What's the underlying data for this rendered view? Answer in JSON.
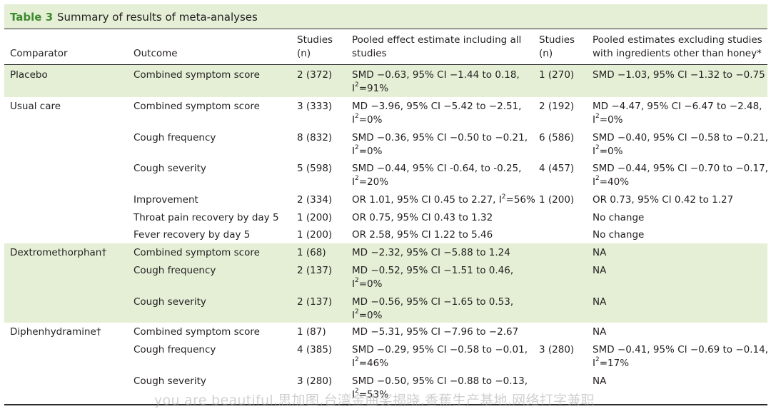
{
  "table": {
    "number": "Table 3",
    "title": "Summary of results of meta-analyses"
  },
  "headers": {
    "comparator": "Comparator",
    "outcome": "Outcome",
    "studies1_a": "Studies",
    "studies1_b": "(n)",
    "pooled_all_a": "Pooled effect estimate including all",
    "pooled_all_b": "studies",
    "studies2_a": "Studies",
    "studies2_b": "(n)",
    "pooled_excl_a": "Pooled estimates excluding studies",
    "pooled_excl_b": "with ingredients other than honey*"
  },
  "rows": [
    {
      "comparator": "Placebo",
      "outcome": "Combined symptom score",
      "studies1": "2 (372)",
      "est1_a": "SMD −0.63, 95% CI −1.44 to 0.18,",
      "est1_b": "91%",
      "studies2": "1 (270)",
      "est2_a": "SMD −1.03, 95% CI −1.32 to −0.75",
      "est2_b": ""
    },
    {
      "comparator": "Usual care",
      "outcome": "Combined symptom score",
      "studies1": "3 (333)",
      "est1_a": "MD −3.96, 95% CI −5.42 to −2.51,",
      "est1_b": "0%",
      "studies2": "2 (192)",
      "est2_a": "MD −4.47, 95% CI −6.47 to −2.48,",
      "est2_b": "0%"
    },
    {
      "comparator": "",
      "outcome": "Cough frequency",
      "studies1": "8 (832)",
      "est1_a": "SMD −0.36, 95% CI −0.50 to −0.21,",
      "est1_b": "0%",
      "studies2": "6 (586)",
      "est2_a": "SMD −0.40, 95% CI −0.58 to −0.21,",
      "est2_b": "0%"
    },
    {
      "comparator": "",
      "outcome": "Cough severity",
      "studies1": "5 (598)",
      "est1_a": "SMD −0.44, 95% CI -0.64, to -0.25,",
      "est1_b": "20%",
      "studies2": "4 (457)",
      "est2_a": "SMD −0.44, 95% CI −0.70 to −0.17,",
      "est2_b": "40%"
    },
    {
      "comparator": "",
      "outcome": "Improvement",
      "studies1": "2 (334)",
      "est1_a": "OR 1.01, 95% CI 0.45 to 2.27, ",
      "est1_b": "",
      "est1_inline": "56%",
      "studies2": "1 (200)",
      "est2_a": "OR 0.73, 95% CI 0.42 to 1.27",
      "est2_b": ""
    },
    {
      "comparator": "",
      "outcome": "Throat pain recovery by day 5",
      "studies1": "1 (200)",
      "est1_a": "OR 0.75, 95% CI 0.43 to 1.32",
      "est1_b": "",
      "studies2": "",
      "est2_a": "No change",
      "est2_b": ""
    },
    {
      "comparator": "",
      "outcome": "Fever recovery by day 5",
      "studies1": "1 (200)",
      "est1_a": "OR 2.58, 95% CI 1.22 to 5.46",
      "est1_b": "",
      "studies2": "",
      "est2_a": "No change",
      "est2_b": ""
    },
    {
      "comparator": "Dextromethorphan†",
      "outcome": "Combined symptom score",
      "studies1": "1 (68)",
      "est1_a": "MD −2.32, 95% CI −5.88 to 1.24",
      "est1_b": "",
      "studies2": "",
      "est2_a": "NA",
      "est2_b": ""
    },
    {
      "comparator": "",
      "outcome": "Cough frequency",
      "studies1": "2 (137)",
      "est1_a": "MD −0.52, 95% CI −1.51 to 0.46,",
      "est1_b": "0%",
      "studies2": "",
      "est2_a": "NA",
      "est2_b": ""
    },
    {
      "comparator": "",
      "outcome": "Cough severity",
      "studies1": "2 (137)",
      "est1_a": "MD −0.56, 95% CI −1.65 to 0.53,",
      "est1_b": "0%",
      "studies2": "",
      "est2_a": "NA",
      "est2_b": ""
    },
    {
      "comparator": "Diphenhydramine†",
      "outcome": "Combined symptom score",
      "studies1": "1 (87)",
      "est1_a": "MD −5.31, 95% CI −7.96 to −2.67",
      "est1_b": "",
      "studies2": "",
      "est2_a": "NA",
      "est2_b": ""
    },
    {
      "comparator": "",
      "outcome": "Cough frequency",
      "studies1": "4 (385)",
      "est1_a": "SMD −0.29, 95% CI −0.58 to −0.01,",
      "est1_b": "46%",
      "studies2": "3 (280)",
      "est2_a": "SMD −0.41, 95% CI −0.69 to −0.14,",
      "est2_b": "17%"
    },
    {
      "comparator": "",
      "outcome": "Cough severity",
      "studies1": "3 (280)",
      "est1_a": "SMD −0.50, 95% CI −0.88 to −0.13,",
      "est1_b": "53%",
      "studies2": "",
      "est2_a": "NA",
      "est2_b": ""
    }
  ],
  "i2_prefix": "I",
  "i2_sup": "2",
  "i2_eq": "=",
  "watermark": "you are beautiful,思加图,台湾金曲奖揭晓,香蕉生产基地,网络打字兼职"
}
